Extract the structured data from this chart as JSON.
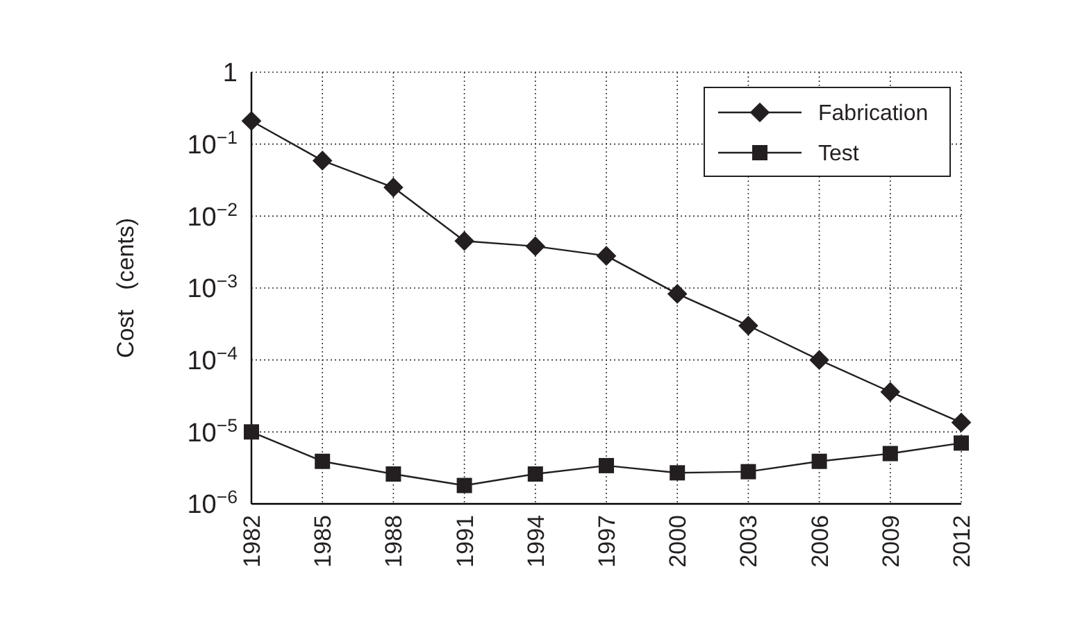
{
  "chart_data": {
    "type": "line",
    "ylabel": "Cost   (cents)",
    "log": "y",
    "grid": true,
    "legend": "top right",
    "line_style": "solid",
    "x": [
      1982,
      1985,
      1988,
      1991,
      1994,
      1997,
      2000,
      2003,
      2006,
      2009,
      2012
    ],
    "xlim": [
      1982,
      2012
    ],
    "xticks": [
      1982,
      1985,
      1988,
      1991,
      1994,
      1997,
      2000,
      2003,
      2006,
      2009,
      2012
    ],
    "ylim": [
      1e-06,
      1
    ],
    "yticks": [
      {
        "value": 1e-06,
        "label": "10$^{−6}$"
      },
      {
        "value": 1e-05,
        "label": "10$^{−5}$"
      },
      {
        "value": 0.0001,
        "label": "10$^{−4}$"
      },
      {
        "value": 0.001,
        "label": "10$^{−3}$"
      },
      {
        "value": 0.01,
        "label": "10$^{−2}$"
      },
      {
        "value": 0.1,
        "label": "10$^{−1}$"
      },
      1
    ],
    "series": [
      {
        "name": "Fabrication",
        "color": "#231f20",
        "marker": "diamond",
        "values": [
          0.21,
          0.059,
          0.025,
          0.0045,
          0.0038,
          0.0028,
          0.00083,
          0.0003,
          0.0001,
          3.6e-05,
          1.35e-05
        ]
      },
      {
        "name": "Test",
        "color": "#231f20",
        "marker": "square",
        "values": [
          1e-05,
          3.9e-06,
          2.6e-06,
          1.8e-06,
          2.6e-06,
          3.4e-06,
          2.7e-06,
          2.8e-06,
          3.9e-06,
          5e-06,
          7e-06
        ]
      }
    ]
  }
}
